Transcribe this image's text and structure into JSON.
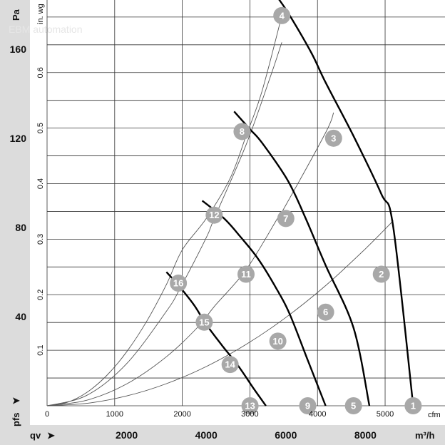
{
  "chart_data": {
    "type": "line",
    "x_unit": "m³/h",
    "x_label_symbol": "qv",
    "x_ticks": [
      2000,
      4000,
      6000,
      8000
    ],
    "x_range": [
      0,
      10000
    ],
    "x2_unit": "cfm",
    "x2_ticks": [
      0,
      1000,
      2000,
      3000,
      4000,
      5000
    ],
    "y_unit": "Pa",
    "y_label_symbol": "pfs",
    "y_ticks": [
      40,
      80,
      120,
      160
    ],
    "y_range": [
      0,
      182
    ],
    "y2_unit": "in. wg",
    "y2_ticks": [
      0.1,
      0.2,
      0.3,
      0.4,
      0.5,
      0.6
    ],
    "grid": true,
    "watermark": "EBM automation",
    "fan_curves": [
      {
        "x": [
          3000,
          3350,
          3700,
          4000,
          4400,
          4800,
          5200,
          5500
        ],
        "y": [
          60,
          53,
          45,
          36.5,
          27,
          18,
          7.5,
          0
        ]
      },
      {
        "x": [
          3900,
          4450,
          4850,
          5300,
          5750,
          6100,
          6550,
          7000
        ],
        "y": [
          92,
          84,
          76,
          66,
          53,
          41,
          20.5,
          0
        ]
      },
      {
        "x": [
          4700,
          5100,
          5400,
          6050,
          6500,
          7000,
          7700,
          8100
        ],
        "y": [
          132,
          124,
          118,
          101,
          84,
          63,
          35,
          0
        ]
      },
      {
        "x": [
          5800,
          6100,
          6650,
          7000,
          7700,
          8400,
          8700,
          9200
        ],
        "y": [
          183,
          175,
          158,
          145,
          121,
          95,
          80,
          0
        ]
      }
    ],
    "system_curves": [
      {
        "x": [
          0,
          1000,
          2000,
          3000,
          4000,
          5000,
          6000,
          7000,
          8000,
          8700
        ],
        "y": [
          0,
          1.1,
          4.4,
          9.9,
          17.6,
          27.5,
          39.6,
          53.9,
          70.4,
          83
        ]
      },
      {
        "x": [
          0,
          1000,
          2000,
          3000,
          3800,
          4200,
          5000,
          5800,
          6000,
          7000,
          7200
        ],
        "y": [
          0,
          2.5,
          9.8,
          22,
          35.5,
          44.5,
          61,
          84.3,
          90,
          122.5,
          131.5
        ]
      },
      {
        "x": [
          0,
          1000,
          2000,
          3000,
          3350,
          4000,
          4200,
          5000,
          5600,
          5900
        ],
        "y": [
          0,
          4.7,
          18.9,
          42.4,
          52.9,
          75.4,
          84,
          117,
          147,
          163
        ]
      },
      {
        "x": [
          0,
          500,
          1000,
          1500,
          2000,
          2500,
          3000,
          3400,
          4000,
          4600,
          5000,
          5400,
          5900
        ],
        "y": [
          0,
          1.5,
          6,
          13.6,
          24.2,
          37.8,
          54.4,
          70,
          84,
          102,
          121,
          141,
          175
        ]
      }
    ],
    "operating_points": [
      {
        "label": "1",
        "x": 9200,
        "y": 0
      },
      {
        "label": "2",
        "x": 8400,
        "y": 59
      },
      {
        "label": "3",
        "x": 7200,
        "y": 120
      },
      {
        "label": "4",
        "x": 5900,
        "y": 175
      },
      {
        "label": "5",
        "x": 7700,
        "y": 0
      },
      {
        "label": "6",
        "x": 7000,
        "y": 42
      },
      {
        "label": "7",
        "x": 6000,
        "y": 84
      },
      {
        "label": "8",
        "x": 4900,
        "y": 123
      },
      {
        "label": "9",
        "x": 6550,
        "y": 0
      },
      {
        "label": "10",
        "x": 5800,
        "y": 29
      },
      {
        "label": "11",
        "x": 5000,
        "y": 59
      },
      {
        "label": "12",
        "x": 4200,
        "y": 85.5
      },
      {
        "label": "13",
        "x": 5100,
        "y": 0
      },
      {
        "label": "14",
        "x": 4600,
        "y": 18.5
      },
      {
        "label": "15",
        "x": 3950,
        "y": 37.5
      },
      {
        "label": "16",
        "x": 3300,
        "y": 55
      }
    ]
  }
}
